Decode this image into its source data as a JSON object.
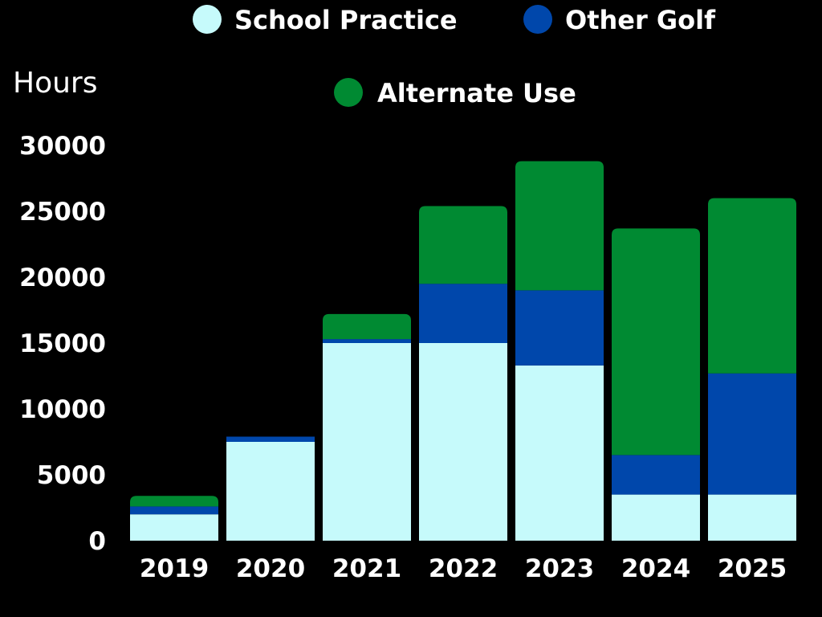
{
  "chart_data": {
    "type": "bar",
    "stacked": true,
    "title": "",
    "xlabel": "",
    "ylabel": "Hours",
    "ylim": [
      0,
      30000
    ],
    "yticks": [
      "0",
      "5000",
      "10000",
      "15000",
      "20000",
      "25000",
      "30000"
    ],
    "categories": [
      "2019",
      "2020",
      "2021",
      "2022",
      "2023",
      "2024",
      "2025"
    ],
    "series": [
      {
        "name": "School Practice",
        "color": "#C6FAFB",
        "values": [
          2000,
          7500,
          15000,
          15000,
          13300,
          3500,
          3500
        ]
      },
      {
        "name": "Other Golf",
        "color": "#0047AB",
        "values": [
          600,
          400,
          300,
          4500,
          5700,
          3000,
          9200
        ]
      },
      {
        "name": "Alternate Use",
        "color": "#008A32",
        "values": [
          800,
          0,
          1900,
          5900,
          9800,
          17200,
          13300
        ]
      }
    ],
    "legend": {
      "placement": "top",
      "items": [
        "School Practice",
        "Other Golf",
        "Alternate Use"
      ]
    },
    "grid": false
  }
}
